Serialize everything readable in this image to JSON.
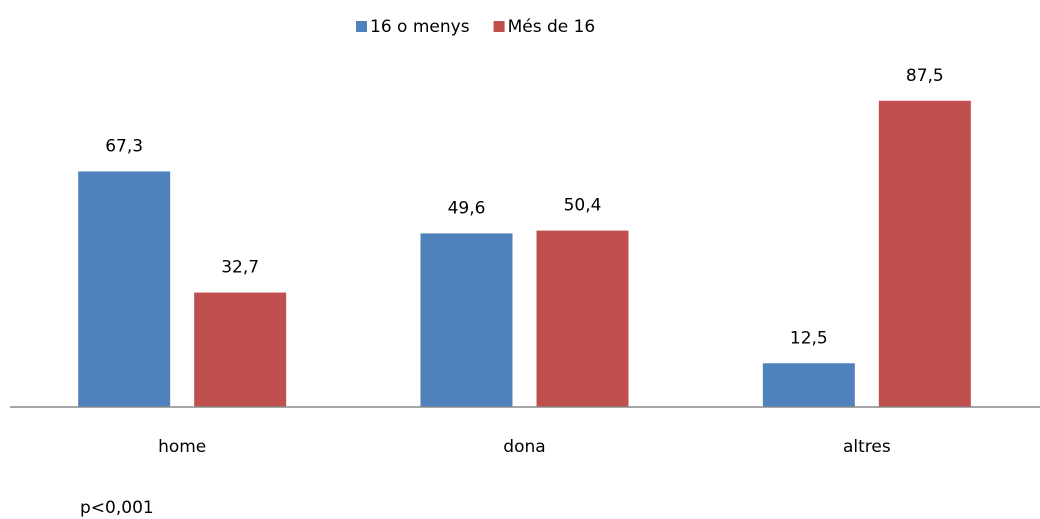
{
  "chart_data": {
    "type": "bar",
    "categories": [
      "home",
      "dona",
      "altres"
    ],
    "series": [
      {
        "name": "16 o menys",
        "color": "#4f81bd",
        "values": [
          67.3,
          49.6,
          12.5
        ],
        "value_labels": [
          "67,3",
          "49,6",
          "12,5"
        ]
      },
      {
        "name": "Més de 16",
        "color": "#c0504d",
        "values": [
          32.7,
          50.4,
          87.5
        ],
        "value_labels": [
          "32,7",
          "50,4",
          "87,5"
        ]
      }
    ],
    "ylim": [
      0,
      100
    ],
    "legend": "top",
    "annotation": "p<0,001"
  }
}
